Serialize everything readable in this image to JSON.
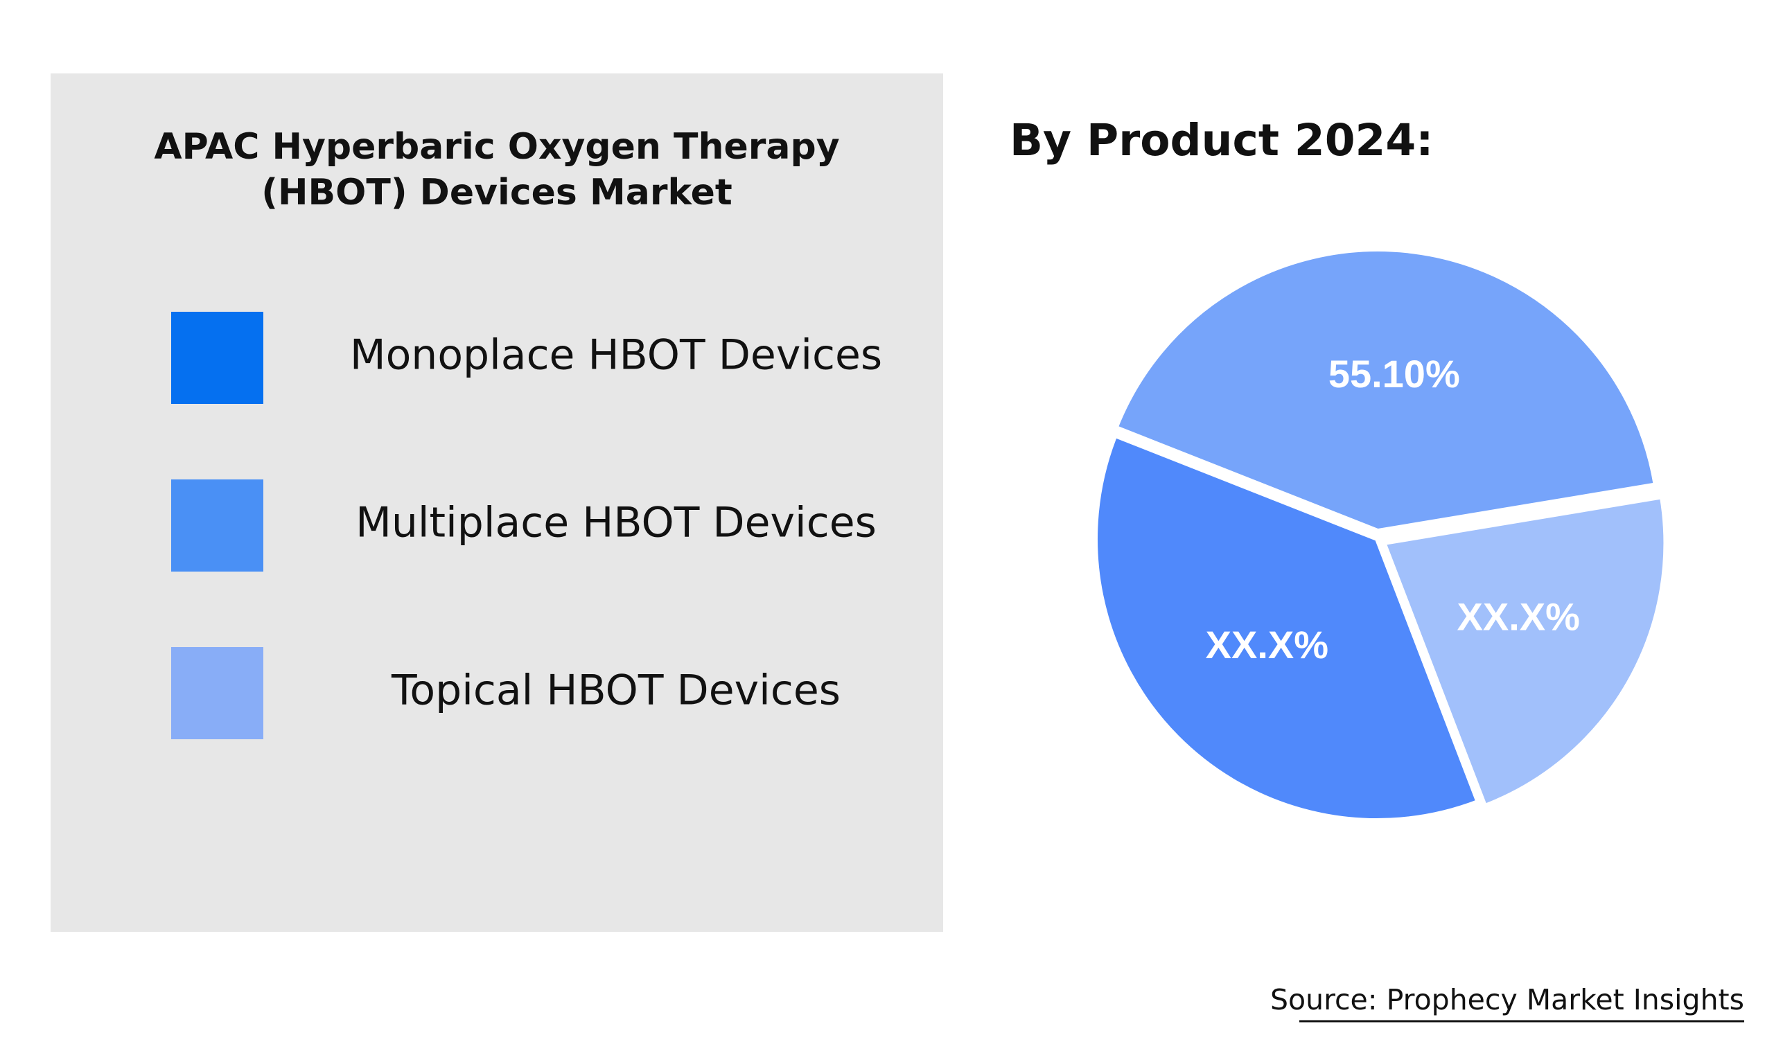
{
  "chart_data": {
    "type": "pie",
    "title": "APAC Hyperbaric Oxygen Therapy (HBOT) Devices Market",
    "subtitle": "By Product 2024:",
    "categories": [
      "Monoplace HBOT Devices",
      "Multiplace HBOT Devices",
      "Topical HBOT Devices"
    ],
    "values": [
      49,
      55.1,
      29
    ],
    "value_labels": [
      "XX.X%",
      "55.10%",
      "XX.X%"
    ],
    "legend_colors": [
      "#0570f0",
      "#4a90f5",
      "#88adf7"
    ],
    "colors": [
      "#5089fb",
      "#76a4fa",
      "#a1c0fb"
    ],
    "source": "Source: Prophecy Market Insights"
  }
}
